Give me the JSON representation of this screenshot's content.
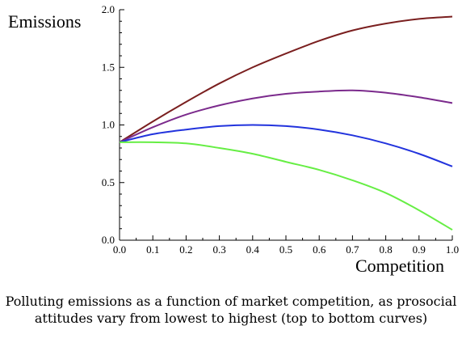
{
  "chart_data": {
    "type": "line",
    "xlabel": "Competition",
    "ylabel": "Emissions",
    "xlim": [
      0.0,
      1.0
    ],
    "ylim": [
      0.0,
      2.0
    ],
    "x_ticks": [
      "0.0",
      "0.1",
      "0.2",
      "0.3",
      "0.4",
      "0.5",
      "0.6",
      "0.7",
      "0.8",
      "0.9",
      "1.0"
    ],
    "y_ticks": [
      "0.0",
      "0.5",
      "1.0",
      "1.5",
      "2.0"
    ],
    "grid": false,
    "series": [
      {
        "color": "#7a1f1f",
        "x": [
          0.0,
          0.1,
          0.2,
          0.3,
          0.4,
          0.5,
          0.6,
          0.7,
          0.8,
          0.9,
          1.0
        ],
        "y": [
          0.85,
          1.03,
          1.2,
          1.36,
          1.5,
          1.62,
          1.73,
          1.82,
          1.88,
          1.92,
          1.94
        ]
      },
      {
        "color": "#7b2a8c",
        "x": [
          0.0,
          0.1,
          0.2,
          0.3,
          0.4,
          0.5,
          0.6,
          0.7,
          0.8,
          0.9,
          1.0
        ],
        "y": [
          0.85,
          0.98,
          1.09,
          1.17,
          1.23,
          1.27,
          1.29,
          1.3,
          1.28,
          1.24,
          1.19
        ]
      },
      {
        "color": "#2233dd",
        "x": [
          0.0,
          0.1,
          0.2,
          0.3,
          0.4,
          0.5,
          0.6,
          0.7,
          0.8,
          0.9,
          1.0
        ],
        "y": [
          0.85,
          0.92,
          0.96,
          0.99,
          1.0,
          0.99,
          0.96,
          0.91,
          0.84,
          0.75,
          0.64
        ]
      },
      {
        "color": "#66ee44",
        "x": [
          0.0,
          0.1,
          0.2,
          0.3,
          0.4,
          0.5,
          0.6,
          0.7,
          0.8,
          0.9,
          1.0
        ],
        "y": [
          0.85,
          0.85,
          0.84,
          0.8,
          0.75,
          0.68,
          0.61,
          0.52,
          0.41,
          0.26,
          0.09
        ]
      }
    ]
  },
  "caption": "Polluting emissions as a function of market competition, as prosocial attitudes vary from lowest to highest (top to bottom curves)"
}
